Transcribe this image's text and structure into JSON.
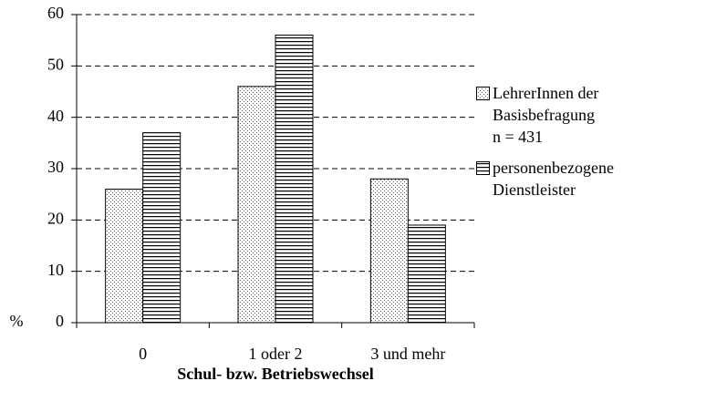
{
  "chart_data": {
    "type": "bar",
    "x_label": "Schul- bzw. Betriebswechsel",
    "y_label": "%",
    "categories": [
      "0",
      "1 oder 2",
      "3 und mehr"
    ],
    "series": [
      {
        "name": "LehrerInnen der\nBasisbefragung\nn = 431",
        "pattern": "dots",
        "values": [
          26,
          46,
          28
        ]
      },
      {
        "name": "personenbezogene\nDienstleister",
        "pattern": "hlines",
        "values": [
          37,
          56,
          19
        ]
      }
    ],
    "ylim": [
      0,
      60
    ],
    "yticks": [
      0,
      10,
      20,
      30,
      40,
      50,
      60
    ],
    "grid": true,
    "legend": "right"
  }
}
